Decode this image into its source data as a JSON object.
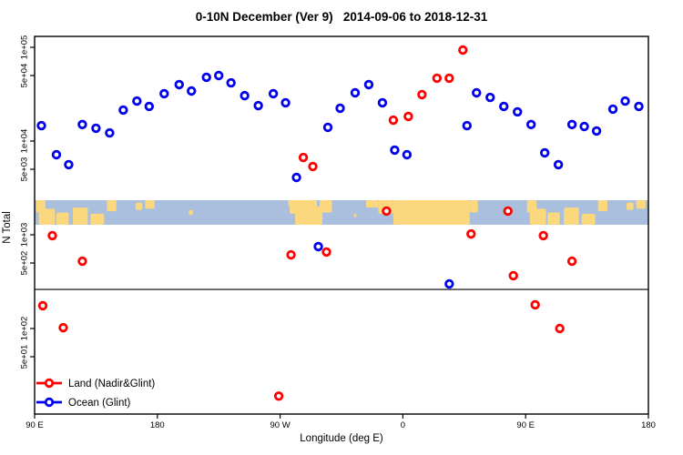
{
  "chart_data": {
    "type": "scatter",
    "title": "0-10N December (Ver 9)   2014-09-06 to 2018-12-31",
    "xlabel": "Longitude (deg E)",
    "ylabel": "N Total",
    "y_scale": "log10",
    "x_axis_note": "axis wraps: 90E eastward around globe to 180 (450 degrees total)",
    "x_range_deg": [
      90,
      540
    ],
    "y_range": [
      30,
      130000
    ],
    "x_ticks": [
      {
        "deg": 90,
        "label": "90 E"
      },
      {
        "deg": 180,
        "label": "180"
      },
      {
        "deg": 270,
        "label": "90 W"
      },
      {
        "deg": 360,
        "label": "0"
      },
      {
        "deg": 450,
        "label": "90 E"
      },
      {
        "deg": 540,
        "label": "180"
      }
    ],
    "y_ticks": [
      {
        "value": 100000,
        "label": "1e+05"
      },
      {
        "value": 50000,
        "label": "5e+04"
      },
      {
        "value": 10000,
        "label": "1e+04"
      },
      {
        "value": 5000,
        "label": "5e+03"
      },
      {
        "value": 1000,
        "label": "1e+03"
      },
      {
        "value": 500,
        "label": "5e+02"
      },
      {
        "value": 100,
        "label": "1e+02"
      },
      {
        "value": 50,
        "label": "5e+01"
      }
    ],
    "separator_line_value": 261,
    "map_strip": {
      "value_top": 2340,
      "value_bottom": 1280,
      "ocean_color": "#a9bfdd",
      "land_color": "#fbd77e",
      "land_blobs": [
        [
          91,
          98,
          0.0,
          0.5
        ],
        [
          93,
          105,
          0.35,
          1
        ],
        [
          106,
          115,
          0.5,
          1
        ],
        [
          118,
          129,
          0.3,
          1
        ],
        [
          131,
          141,
          0.55,
          1
        ],
        [
          143,
          150,
          0,
          0.45
        ],
        [
          164,
          169,
          0.1,
          0.4
        ],
        [
          171,
          178,
          0,
          0.35
        ],
        [
          203,
          206,
          0.4,
          0.6
        ],
        [
          324,
          326,
          0.55,
          0.7
        ],
        [
          276,
          279,
          0,
          0.25
        ],
        [
          277,
          288,
          0,
          0.55
        ],
        [
          281,
          301,
          0.25,
          1
        ],
        [
          283,
          297,
          0,
          1
        ],
        [
          299,
          308,
          0,
          0.5
        ],
        [
          333,
          342,
          0,
          0.3
        ],
        [
          342,
          353,
          0,
          0.55
        ],
        [
          353,
          409,
          0,
          1
        ],
        [
          409,
          415,
          0,
          0.5
        ],
        [
          451,
          458,
          0,
          0.5
        ],
        [
          453,
          465,
          0.35,
          1
        ],
        [
          466,
          475,
          0.5,
          1
        ],
        [
          478,
          489,
          0.3,
          1
        ],
        [
          491,
          501,
          0.55,
          1
        ],
        [
          503,
          510,
          0,
          0.45
        ],
        [
          524,
          529,
          0.1,
          0.4
        ],
        [
          531,
          538,
          0,
          0.35
        ]
      ]
    },
    "legend": {
      "position": "bottom-left"
    },
    "series": [
      {
        "name": "Land (Nadir&Glint)",
        "color": "#ff0000",
        "marker": "open-circle",
        "points": [
          {
            "deg": 287,
            "n": 6680
          },
          {
            "deg": 294,
            "n": 5350
          },
          {
            "deg": 353,
            "n": 16700
          },
          {
            "deg": 364,
            "n": 18300
          },
          {
            "deg": 374,
            "n": 31300
          },
          {
            "deg": 385,
            "n": 46800
          },
          {
            "deg": 394,
            "n": 46800
          },
          {
            "deg": 404,
            "n": 93500
          },
          {
            "deg": 348,
            "n": 1790
          },
          {
            "deg": 437,
            "n": 1790
          },
          {
            "deg": 103,
            "n": 980
          },
          {
            "deg": 125,
            "n": 522
          },
          {
            "deg": 278,
            "n": 611
          },
          {
            "deg": 304,
            "n": 655
          },
          {
            "deg": 410,
            "n": 1020
          },
          {
            "deg": 463,
            "n": 980
          },
          {
            "deg": 484,
            "n": 522
          },
          {
            "deg": 441,
            "n": 366
          },
          {
            "deg": 96,
            "n": 175
          },
          {
            "deg": 111,
            "n": 102
          },
          {
            "deg": 457,
            "n": 179
          },
          {
            "deg": 475,
            "n": 100
          },
          {
            "deg": 269,
            "n": 19
          }
        ]
      },
      {
        "name": "Ocean (Glint)",
        "color": "#0000ee",
        "marker": "open-circle",
        "points": [
          {
            "deg": 95,
            "n": 14600
          },
          {
            "deg": 106,
            "n": 7150
          },
          {
            "deg": 115,
            "n": 5600
          },
          {
            "deg": 125,
            "n": 15000
          },
          {
            "deg": 135,
            "n": 13700
          },
          {
            "deg": 145,
            "n": 12200
          },
          {
            "deg": 155,
            "n": 21400
          },
          {
            "deg": 165,
            "n": 26700
          },
          {
            "deg": 174,
            "n": 23400
          },
          {
            "deg": 185,
            "n": 32000
          },
          {
            "deg": 196,
            "n": 40000
          },
          {
            "deg": 205,
            "n": 34200
          },
          {
            "deg": 216,
            "n": 47900
          },
          {
            "deg": 225,
            "n": 50000
          },
          {
            "deg": 234,
            "n": 41800
          },
          {
            "deg": 244,
            "n": 30500
          },
          {
            "deg": 254,
            "n": 23900
          },
          {
            "deg": 265,
            "n": 32000
          },
          {
            "deg": 274,
            "n": 25600
          },
          {
            "deg": 282,
            "n": 4090
          },
          {
            "deg": 305,
            "n": 14000
          },
          {
            "deg": 314,
            "n": 22400
          },
          {
            "deg": 325,
            "n": 32700
          },
          {
            "deg": 335,
            "n": 40000
          },
          {
            "deg": 345,
            "n": 25600
          },
          {
            "deg": 354,
            "n": 8000
          },
          {
            "deg": 363,
            "n": 7150
          },
          {
            "deg": 407,
            "n": 14600
          },
          {
            "deg": 414,
            "n": 32700
          },
          {
            "deg": 424,
            "n": 29200
          },
          {
            "deg": 434,
            "n": 23400
          },
          {
            "deg": 444,
            "n": 20500
          },
          {
            "deg": 454,
            "n": 15000
          },
          {
            "deg": 464,
            "n": 7480
          },
          {
            "deg": 474,
            "n": 5600
          },
          {
            "deg": 484,
            "n": 15000
          },
          {
            "deg": 493,
            "n": 14300
          },
          {
            "deg": 502,
            "n": 12800
          },
          {
            "deg": 514,
            "n": 21900
          },
          {
            "deg": 523,
            "n": 26700
          },
          {
            "deg": 533,
            "n": 23400
          },
          {
            "deg": 298,
            "n": 748
          },
          {
            "deg": 394,
            "n": 299
          }
        ]
      }
    ]
  }
}
